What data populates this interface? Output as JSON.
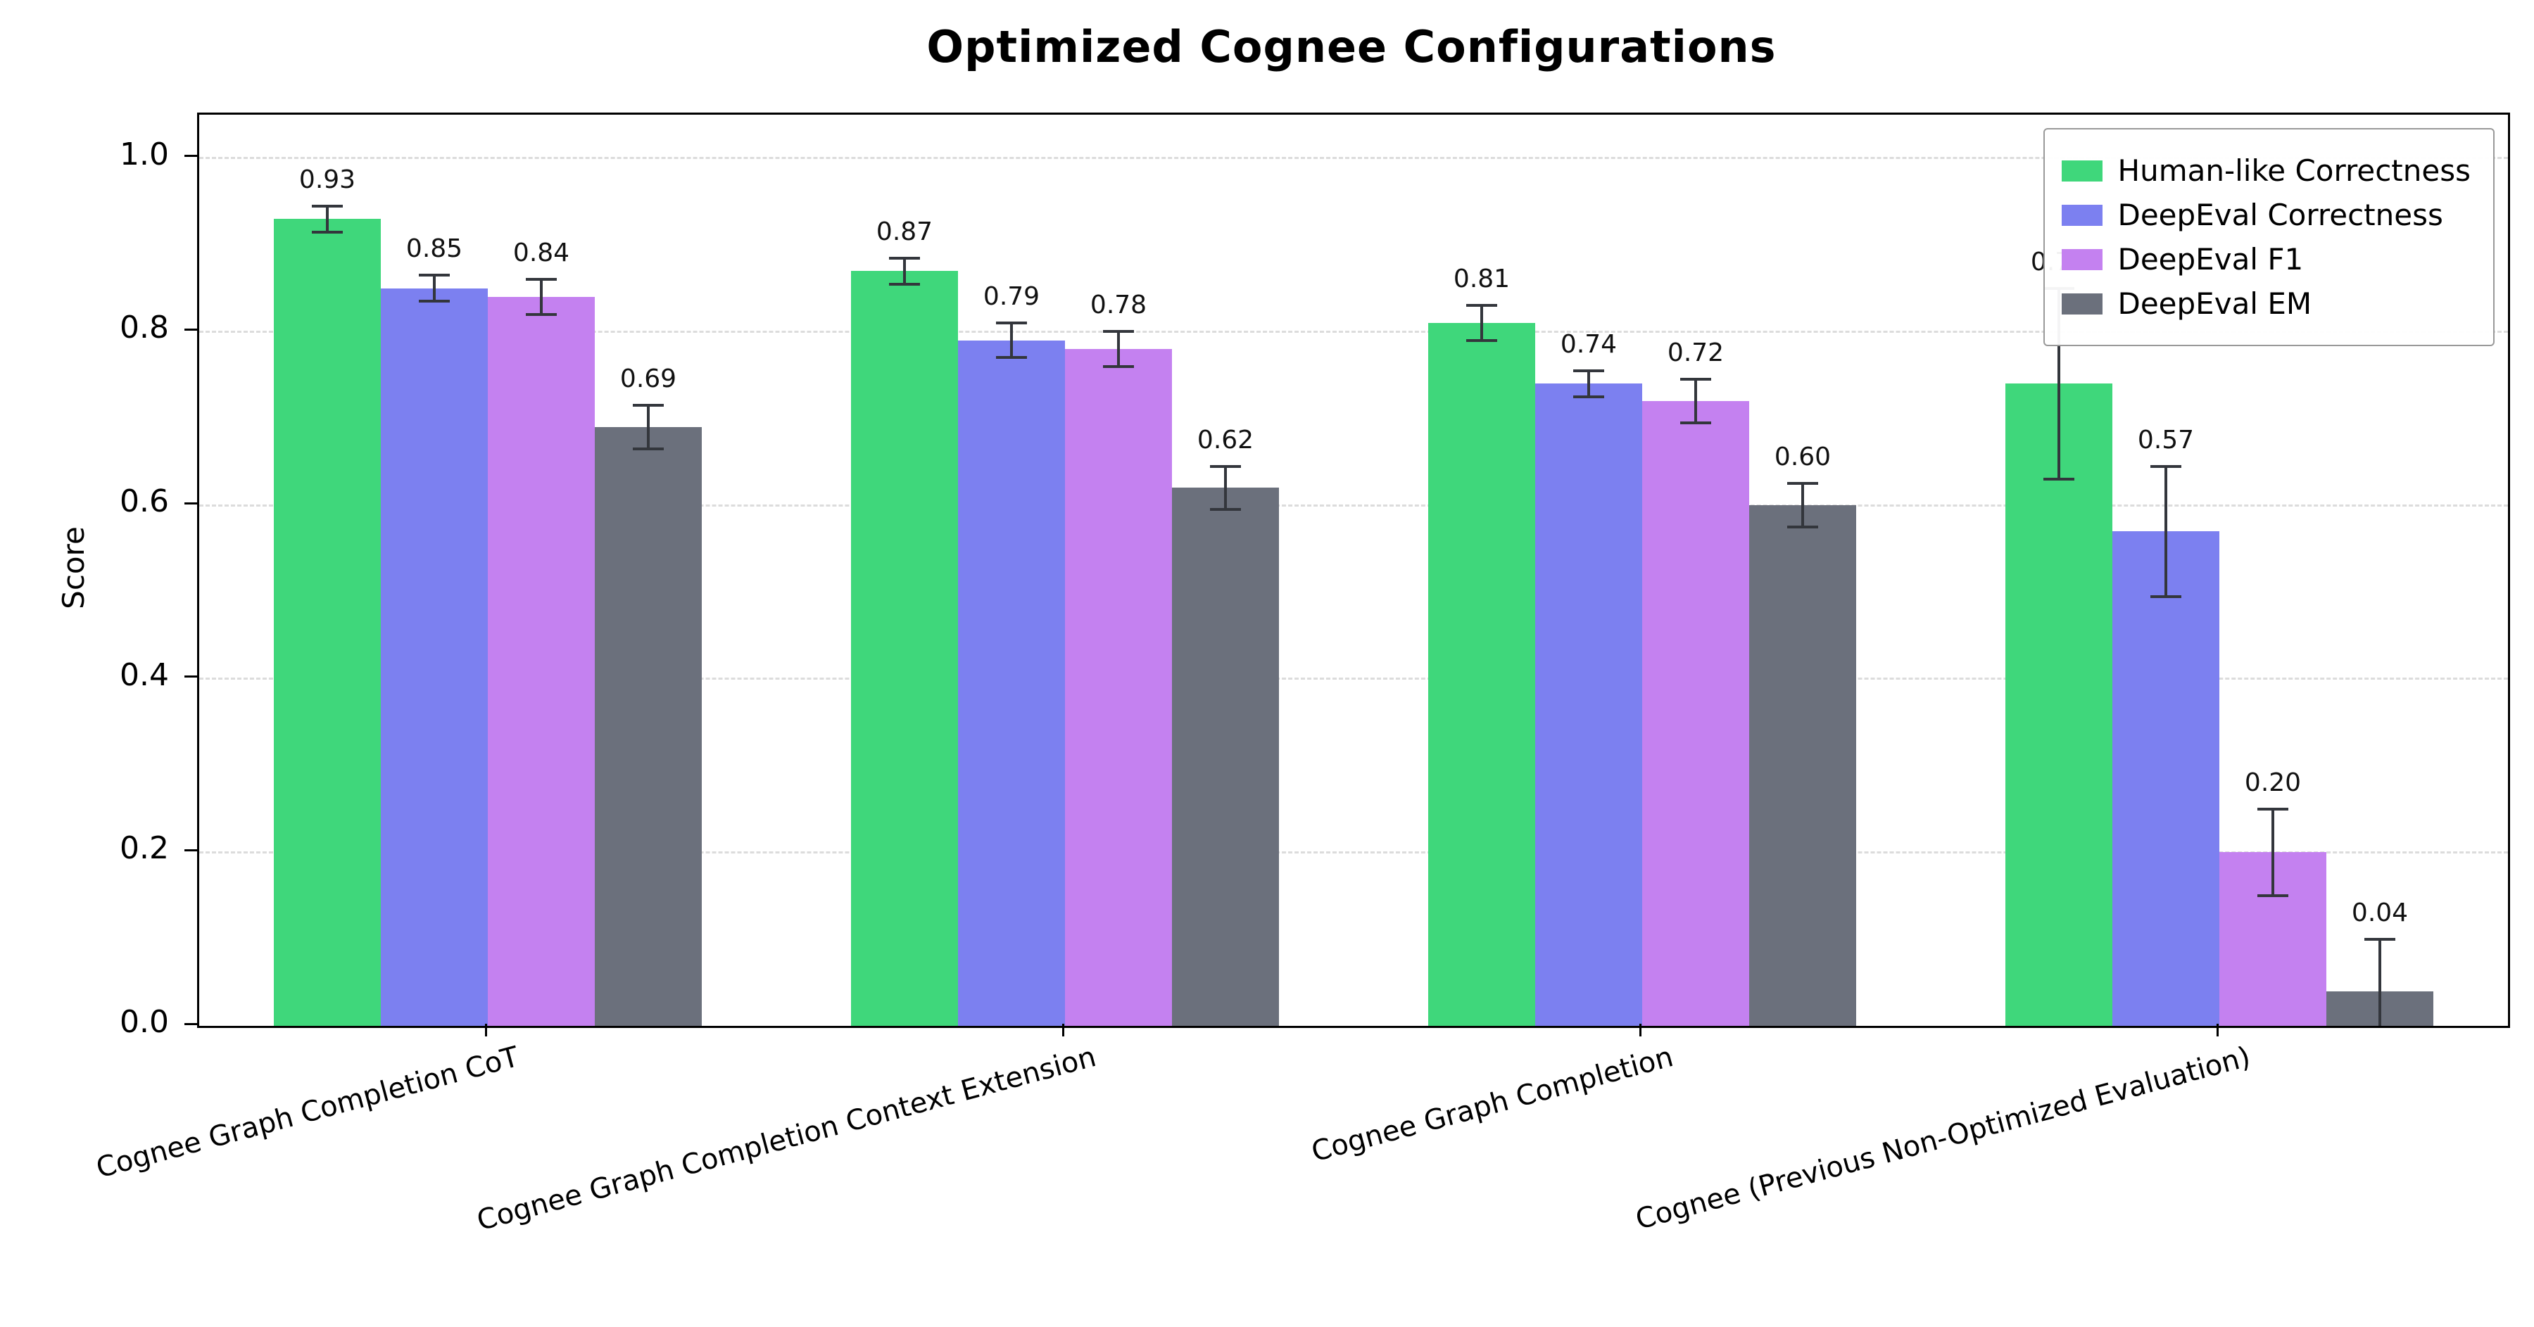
{
  "title": "Optimized Cognee Configurations",
  "chart_data": {
    "type": "bar",
    "title": "Optimized Cognee Configurations",
    "xlabel": "",
    "ylabel": "Score",
    "ylim": [
      0,
      1.05
    ],
    "yticks": [
      0.0,
      0.2,
      0.4,
      0.6,
      0.8,
      1.0
    ],
    "ytick_labels": [
      "0.0",
      "0.2",
      "0.4",
      "0.6",
      "0.8",
      "1.0"
    ],
    "grid": "horizontal-dashed",
    "legend_position": "upper right",
    "categories": [
      "Cognee Graph Completion CoT",
      "Cognee Graph Completion Context Extension",
      "Cognee Graph Completion",
      "Cognee (Previous Non-Optimized Evaluation)"
    ],
    "series": [
      {
        "name": "Human-like Correctness",
        "color": "#3fd77b",
        "values": [
          0.93,
          0.87,
          0.81,
          0.74
        ],
        "errors": [
          0.015,
          0.015,
          0.02,
          0.11
        ],
        "value_labels": [
          "0.93",
          "0.87",
          "0.81",
          "0.74"
        ]
      },
      {
        "name": "DeepEval Correctness",
        "color": "#7c80f0",
        "values": [
          0.85,
          0.79,
          0.74,
          0.57
        ],
        "errors": [
          0.015,
          0.02,
          0.015,
          0.075
        ],
        "value_labels": [
          "0.85",
          "0.79",
          "0.74",
          "0.57"
        ]
      },
      {
        "name": "DeepEval F1",
        "color": "#c481f0",
        "values": [
          0.84,
          0.78,
          0.72,
          0.2
        ],
        "errors": [
          0.02,
          0.02,
          0.025,
          0.05
        ],
        "value_labels": [
          "0.84",
          "0.78",
          "0.72",
          "0.20"
        ]
      },
      {
        "name": "DeepEval EM",
        "color": "#6b707c",
        "values": [
          0.69,
          0.62,
          0.6,
          0.04
        ],
        "errors": [
          0.025,
          0.025,
          0.025,
          0.06
        ],
        "value_labels": [
          "0.69",
          "0.62",
          "0.60",
          "0.04"
        ]
      }
    ]
  }
}
